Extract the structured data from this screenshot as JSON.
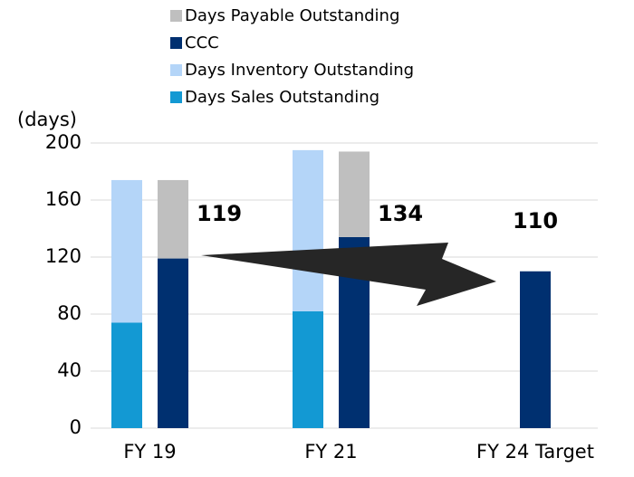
{
  "chart_data": {
    "type": "stacked_bar",
    "y_label": "(days)",
    "categories": [
      "FY 19",
      "FY 21",
      "FY 24 Target"
    ],
    "series": [
      {
        "name": "Days Payable Outstanding",
        "color": "#bfbfbf",
        "stack": 1,
        "values": [
          55,
          60,
          null
        ]
      },
      {
        "name": "CCC",
        "color": "#003070",
        "stack": 1,
        "values": [
          119,
          134,
          110
        ]
      },
      {
        "name": "Days Inventory Outstanding",
        "color": "#b4d5f8",
        "stack": 0,
        "values": [
          100,
          113,
          null
        ]
      },
      {
        "name": "Days Sales Outstanding",
        "color": "#1399d3",
        "stack": 0,
        "values": [
          74,
          82,
          null
        ]
      }
    ],
    "ylim": [
      0,
      200
    ],
    "yticks": [
      0,
      40,
      80,
      120,
      160,
      200
    ],
    "grid": true
  }
}
